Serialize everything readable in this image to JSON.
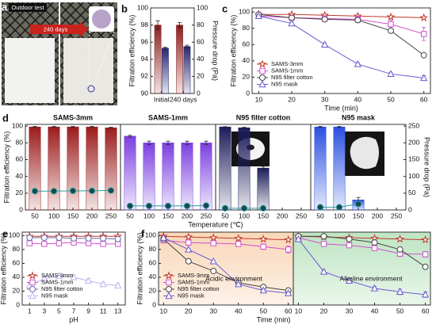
{
  "panel_a": {
    "letter": "a",
    "label": "Outdoor test",
    "arrow_label": "240 days"
  },
  "chart_data": [
    {
      "type": "bar",
      "panel": "b",
      "categories": [
        "Initial",
        "240 days"
      ],
      "series": [
        {
          "color": "#8b1e1e",
          "values": [
            98.0,
            98.0
          ],
          "errors": [
            0.5,
            0.3
          ]
        },
        {
          "color": "#26266e",
          "axis": "y2",
          "values": [
            53,
            55
          ],
          "errors": [
            1,
            1.5
          ]
        }
      ],
      "ylim": [
        90,
        100
      ],
      "yticks": [
        90,
        92,
        94,
        96,
        98,
        100
      ],
      "y2lim": [
        0,
        100
      ],
      "y2ticks": [
        0,
        20,
        40,
        60,
        80,
        100
      ],
      "ylabel": "Filtration efficiency (%)",
      "y2label": "Pressure drop (Pa)",
      "ycolor": "#8b1e1e",
      "y2color": "#26266e"
    },
    {
      "type": "line",
      "panel": "c",
      "x": [
        10,
        20,
        30,
        40,
        50,
        60
      ],
      "xlim": [
        8,
        62
      ],
      "xticks": [
        10,
        20,
        30,
        40,
        50,
        60
      ],
      "ylim": [
        0,
        105
      ],
      "yticks": [
        0,
        20,
        40,
        60,
        80,
        100
      ],
      "xlabel": "Time (min)",
      "ylabel": "Filtration efficiency (%)",
      "legend": "lower left",
      "series": [
        {
          "name": "SAMS-3mm",
          "color": "#c0392b",
          "marker": "star",
          "values": [
            97,
            97,
            96,
            95,
            94,
            93
          ]
        },
        {
          "name": "SAMS-1mm",
          "color": "#d04fd0",
          "marker": "square",
          "values": [
            95,
            93,
            92,
            91,
            85,
            73
          ],
          "errors": [
            1,
            2,
            3,
            4,
            5,
            8
          ]
        },
        {
          "name": "N95 filter cotton",
          "color": "#444444",
          "marker": "circle",
          "values": [
            97,
            93,
            91,
            90,
            77,
            47
          ],
          "errors": [
            1,
            1,
            2,
            3,
            2,
            2
          ]
        },
        {
          "name": "N95 mask",
          "color": "#6a5acd",
          "marker": "triangle",
          "values": [
            95,
            86,
            60,
            36,
            24,
            19
          ],
          "errors": [
            2,
            2,
            2,
            2,
            2,
            3
          ]
        }
      ]
    },
    {
      "type": "bar",
      "panel": "d",
      "title": "SAMS-3mm",
      "categories": [
        50,
        100,
        150,
        200,
        250
      ],
      "ylim": [
        0,
        102
      ],
      "yticks": [
        0,
        20,
        40,
        60,
        80,
        100
      ],
      "y2lim": [
        0,
        255
      ],
      "ylabel": "Filtration efficiency (%)",
      "series": [
        {
          "color": "#9b1c1c",
          "values": [
            99,
            99,
            99,
            99,
            98
          ],
          "errors": [
            0.5,
            0.5,
            0.5,
            0.5,
            0.5
          ]
        },
        {
          "color": "#2a9d9d",
          "axis": "y2",
          "mark": "line",
          "marker": "dot",
          "values": [
            56,
            56,
            57,
            57,
            58
          ]
        }
      ]
    },
    {
      "type": "bar",
      "title": "SAMS-1mm",
      "categories": [
        50,
        100,
        150,
        200,
        250
      ],
      "ylim": [
        0,
        102
      ],
      "y2lim": [
        0,
        255
      ],
      "xlabel": "Temperature (℃)",
      "series": [
        {
          "color": "#7b3fe0",
          "values": [
            88,
            80,
            80,
            80,
            80
          ],
          "errors": [
            1,
            2,
            2,
            2,
            2
          ]
        },
        {
          "color": "#2a9d9d",
          "axis": "y2",
          "mark": "line",
          "marker": "dot",
          "values": [
            12,
            12,
            12,
            12,
            13
          ]
        }
      ]
    },
    {
      "type": "bar",
      "title": "N95 filter cotton",
      "categories": [
        50,
        100,
        150,
        200,
        250
      ],
      "ylim": [
        0,
        102
      ],
      "y2lim": [
        0,
        255
      ],
      "series": [
        {
          "color": "#1c1c5a",
          "values": [
            99,
            98,
            50,
            null,
            null
          ],
          "errors": [
            0.3,
            0.5,
            2,
            null,
            null
          ]
        },
        {
          "color": "#2a9d9d",
          "axis": "y2",
          "mark": "line",
          "marker": "dot",
          "values": [
            5,
            5,
            5,
            null,
            null
          ]
        }
      ]
    },
    {
      "type": "bar",
      "title": "N95 mask",
      "categories": [
        50,
        100,
        150,
        200,
        250
      ],
      "ylim": [
        0,
        102
      ],
      "y2lim": [
        0,
        255
      ],
      "y2ticks": [
        0,
        50,
        100,
        150,
        200,
        250
      ],
      "y2label": "Pressure drop (Pa)",
      "y2color": "#1f8a8a",
      "series": [
        {
          "color": "#2a4fe0",
          "values": [
            99,
            99,
            12,
            null,
            null
          ],
          "errors": [
            0.5,
            0.5,
            3,
            null,
            null
          ]
        },
        {
          "color": "#2a9d9d",
          "axis": "y2",
          "mark": "line",
          "marker": "dot",
          "values": [
            8,
            8,
            18,
            null,
            null
          ],
          "errors": [
            null,
            null,
            8,
            null,
            null
          ]
        }
      ]
    },
    {
      "type": "line",
      "panel": "e",
      "x": [
        1,
        3,
        5,
        7,
        9,
        11,
        13
      ],
      "xlim": [
        0,
        14
      ],
      "xticks": [
        1,
        3,
        5,
        7,
        9,
        11,
        13
      ],
      "ylim": [
        0,
        105
      ],
      "yticks": [
        0,
        20,
        40,
        60,
        80,
        100
      ],
      "xlabel": "pH",
      "ylabel": "Filtration efficiency (%)",
      "legend": "lower left",
      "series": [
        {
          "name": "SAMS-3mm",
          "color": "#c0392b",
          "marker": "star",
          "values": [
            99,
            99,
            99,
            99,
            99,
            99,
            99
          ]
        },
        {
          "name": "SAMS-1mm",
          "color": "#d04fd0",
          "marker": "square",
          "values": [
            89,
            88,
            89,
            90,
            89,
            88,
            88
          ]
        },
        {
          "name": "N95 filter cotton",
          "color": "#6a6aa8",
          "marker": "circle",
          "values": [
            97,
            97,
            97,
            96,
            96,
            96,
            95
          ]
        },
        {
          "name": "N95 mask",
          "color": "#c2b2ee",
          "marker": "triangle",
          "values": [
            28,
            38,
            42,
            40,
            35,
            30,
            28
          ],
          "errors": [
            3,
            3,
            3,
            3,
            3,
            3,
            3
          ]
        }
      ]
    },
    {
      "type": "line",
      "panel": "f",
      "x": [
        10,
        20,
        30,
        40,
        50,
        60
      ],
      "xlim": [
        8,
        62
      ],
      "xticks": [
        10,
        20,
        30,
        40,
        50,
        60
      ],
      "ylim": [
        0,
        105
      ],
      "yticks": [
        0,
        20,
        40,
        60,
        80,
        100
      ],
      "xlabel": "Time (min)",
      "ylabel": "Filtration efficiency (%)",
      "legend": "lower left",
      "annotation": "Acidic environment",
      "annotation_color": "#e08a2a",
      "background": "#f7c9a0",
      "series": [
        {
          "name": "SAMS-3mm",
          "color": "#c0392b",
          "marker": "star",
          "values": [
            99,
            98,
            97,
            96,
            95,
            94
          ]
        },
        {
          "name": "SAMS-1mm",
          "color": "#d04fd0",
          "marker": "square",
          "values": [
            93,
            90,
            89,
            88,
            84,
            80
          ],
          "errors": [
            2,
            3,
            3,
            3,
            4,
            5
          ]
        },
        {
          "name": "N95 filter cotton",
          "color": "#444444",
          "marker": "circle",
          "values": [
            95,
            63,
            49,
            32,
            26,
            21
          ],
          "errors": [
            1,
            1,
            1,
            2,
            2,
            2
          ]
        },
        {
          "name": "N95 mask",
          "color": "#6a5acd",
          "marker": "triangle",
          "values": [
            97,
            80,
            63,
            30,
            21,
            17
          ],
          "errors": [
            1,
            1,
            1,
            2,
            2,
            2
          ]
        }
      ]
    },
    {
      "type": "line",
      "x": [
        10,
        20,
        30,
        40,
        50,
        60
      ],
      "xlim": [
        8,
        62
      ],
      "xticks": [
        10,
        20,
        30,
        40,
        50,
        60
      ],
      "ylim": [
        0,
        105
      ],
      "annotation": "Alkaline environment",
      "annotation_color": "#2ea043",
      "background": "#a8dcae",
      "series": [
        {
          "color": "#c0392b",
          "marker": "star",
          "values": [
            99,
            98,
            97,
            96,
            95,
            94
          ]
        },
        {
          "color": "#d04fd0",
          "marker": "square",
          "values": [
            97,
            88,
            86,
            82,
            74,
            73
          ],
          "errors": [
            1,
            2,
            3,
            3,
            4,
            4
          ]
        },
        {
          "color": "#444444",
          "marker": "circle",
          "values": [
            99,
            99,
            95,
            90,
            80,
            55
          ],
          "errors": [
            1,
            1,
            2,
            2,
            3,
            2
          ]
        },
        {
          "color": "#6a5acd",
          "marker": "triangle",
          "values": [
            95,
            48,
            35,
            24,
            19,
            15
          ],
          "errors": [
            1,
            2,
            3,
            3,
            4,
            4
          ]
        }
      ]
    }
  ]
}
